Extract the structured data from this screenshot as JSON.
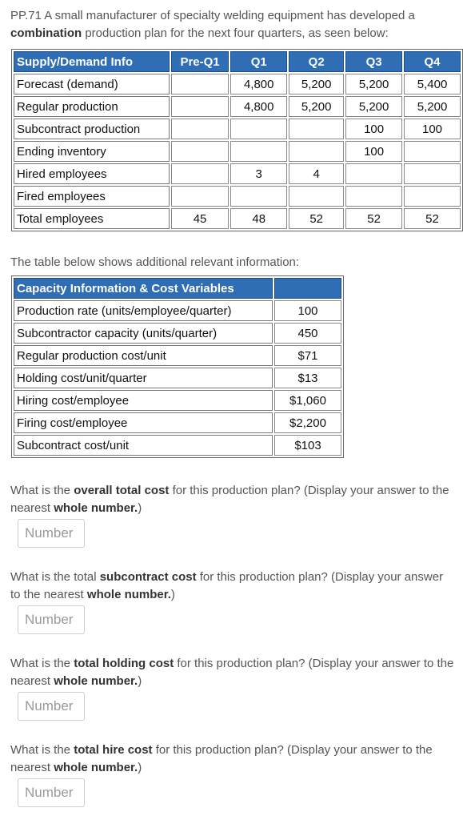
{
  "intro": [
    {
      "text": "PP.71 A small manufacturer of specialty welding equipment has developed a "
    },
    {
      "text": "combination",
      "bold": true
    },
    {
      "text": " production plan for the next four quarters, as seen below:"
    }
  ],
  "plan_table": {
    "header": [
      "Supply/Demand Info",
      "Pre-Q1",
      "Q1",
      "Q2",
      "Q3",
      "Q4"
    ],
    "rows": [
      [
        "Forecast (demand)",
        null,
        "4,800",
        "5,200",
        "5,200",
        "5,400"
      ],
      [
        "Regular production",
        null,
        "4,800",
        "5,200",
        "5,200",
        "5,200"
      ],
      [
        "Subcontract production",
        null,
        null,
        null,
        "100",
        "100"
      ],
      [
        "Ending inventory",
        null,
        null,
        null,
        "100",
        null
      ],
      [
        "Hired employees",
        null,
        "3",
        "4",
        null,
        null
      ],
      [
        "Fired employees",
        null,
        null,
        null,
        null,
        null
      ],
      [
        "Total employees",
        "45",
        "48",
        "52",
        "52",
        "52"
      ]
    ]
  },
  "middle_text": "The table below shows additional relevant information:",
  "cost_table": {
    "header": [
      "Capacity Information & Cost Variables",
      null
    ],
    "rows": [
      [
        "Production rate (units/employee/quarter)",
        "100"
      ],
      [
        "Subcontractor capacity (units/quarter)",
        "450"
      ],
      [
        "Regular production cost/unit",
        "$71"
      ],
      [
        "Holding cost/unit/quarter",
        "$13"
      ],
      [
        "Hiring cost/employee",
        "$1,060"
      ],
      [
        "Firing cost/employee",
        "$2,200"
      ],
      [
        "Subcontract cost/unit",
        "$103"
      ]
    ]
  },
  "questions": [
    {
      "parts": [
        {
          "text": "What is the "
        },
        {
          "text": "overall total cost",
          "bold": true
        },
        {
          "text": " for this production plan? (Display your answer to the nearest "
        },
        {
          "text": "whole number.",
          "bold": true
        },
        {
          "text": ")"
        }
      ],
      "placeholder": "Number"
    },
    {
      "parts": [
        {
          "text": "What is the total "
        },
        {
          "text": "subcontract cost",
          "bold": true
        },
        {
          "text": " for this production plan? (Display your answer to the nearest "
        },
        {
          "text": "whole number.",
          "bold": true
        },
        {
          "text": ")"
        }
      ],
      "placeholder": "Number"
    },
    {
      "parts": [
        {
          "text": "What is the "
        },
        {
          "text": "total holding cost",
          "bold": true
        },
        {
          "text": " for this production plan? (Display your answer to the nearest "
        },
        {
          "text": "whole number.",
          "bold": true
        },
        {
          "text": ")"
        }
      ],
      "placeholder": "Number"
    },
    {
      "parts": [
        {
          "text": "What is the "
        },
        {
          "text": "total hire cost",
          "bold": true
        },
        {
          "text": " for this production plan? (Display your answer to the nearest "
        },
        {
          "text": "whole number.",
          "bold": true
        },
        {
          "text": ")"
        }
      ],
      "placeholder": "Number"
    }
  ]
}
